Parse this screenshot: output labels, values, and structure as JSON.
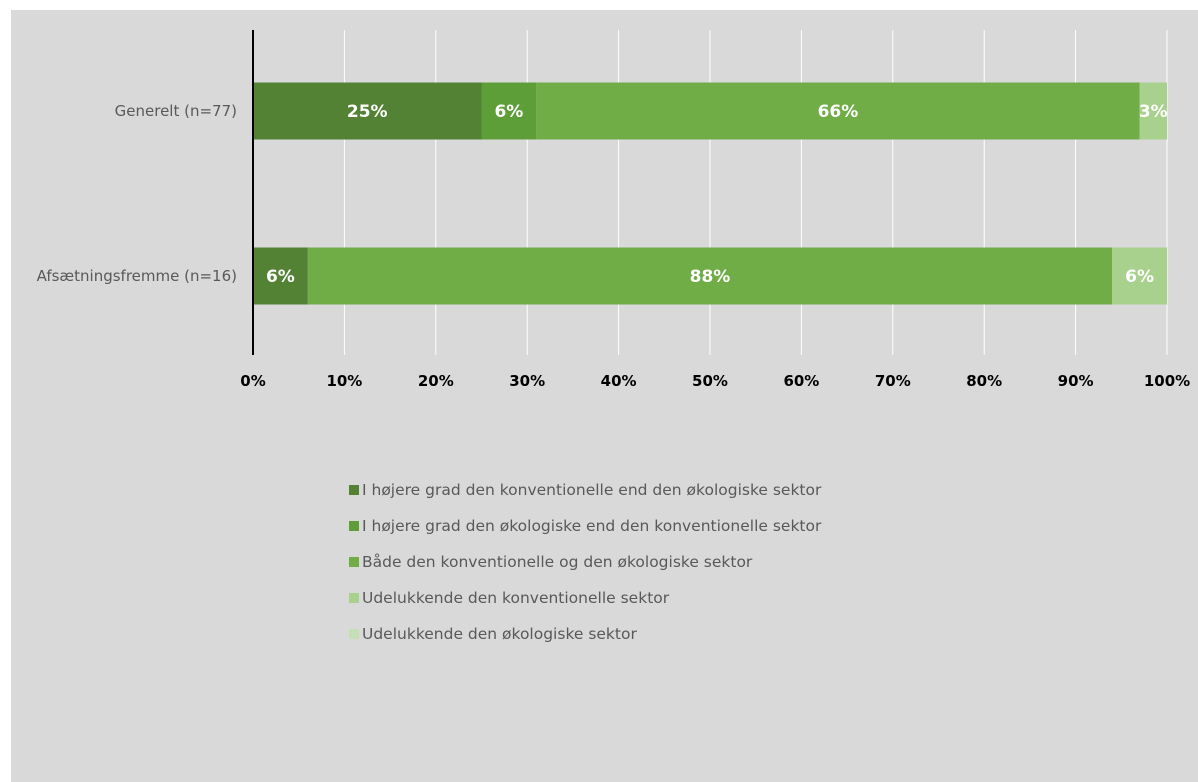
{
  "chart_data": {
    "type": "bar",
    "orientation": "horizontal",
    "stacked": true,
    "categories": [
      "Generelt (n=77)",
      "Afsætningsfremme (n=16)"
    ],
    "series": [
      {
        "name": "I højere grad den konventionelle end den økologiske sektor",
        "color": "#548235",
        "values": [
          25,
          6
        ],
        "labels": [
          "25%",
          "6%"
        ]
      },
      {
        "name": "I højere grad den økologiske end den konventionelle sektor",
        "color": "#5e9e39",
        "values": [
          6,
          0
        ],
        "labels": [
          "6%",
          ""
        ]
      },
      {
        "name": "Både den konventionelle og den økologiske sektor",
        "color": "#70ad47",
        "values": [
          66,
          88
        ],
        "labels": [
          "66%",
          "88%"
        ]
      },
      {
        "name": "Udelukkende den konventionelle sektor",
        "color": "#a9d18e",
        "values": [
          3,
          6
        ],
        "labels": [
          "3%",
          "6%"
        ]
      },
      {
        "name": "Udelukkende den økologiske sektor",
        "color": "#c5e0b4",
        "values": [
          0,
          0
        ],
        "labels": [
          "",
          ""
        ]
      }
    ],
    "xlim": [
      0,
      100
    ],
    "x_ticks": [
      "0%",
      "10%",
      "20%",
      "30%",
      "40%",
      "50%",
      "60%",
      "70%",
      "80%",
      "90%",
      "100%"
    ],
    "grid": true,
    "legend_position": "bottom"
  }
}
